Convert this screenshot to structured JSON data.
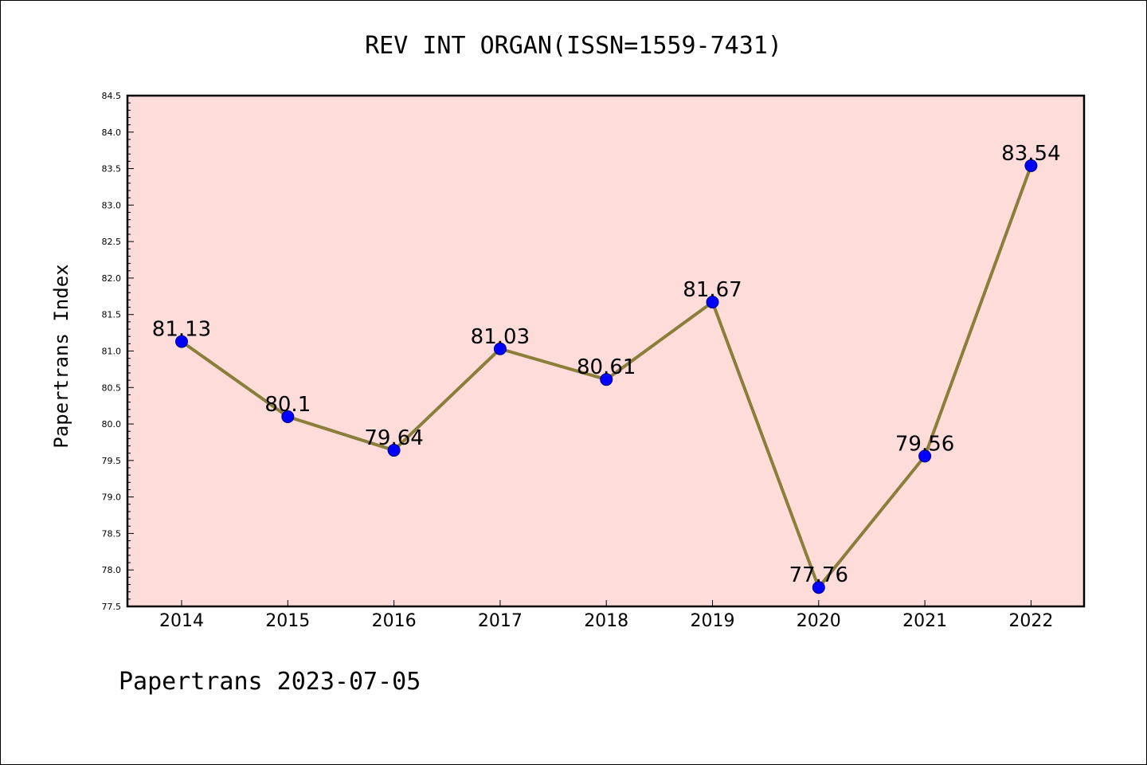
{
  "chart_data": {
    "type": "line",
    "title": "REV INT ORGAN(ISSN=1559-7431)",
    "ylabel": "Papertrans Index",
    "xlabel": "",
    "footer": "Papertrans 2023-07-05",
    "x": [
      "2014",
      "2015",
      "2016",
      "2017",
      "2018",
      "2019",
      "2020",
      "2021",
      "2022"
    ],
    "series": [
      {
        "values": [
          81.13,
          80.1,
          79.64,
          81.03,
          80.61,
          81.67,
          77.76,
          79.56,
          83.54
        ],
        "labels": [
          "81.13",
          "80.1",
          "79.64",
          "81.03",
          "80.61",
          "81.67",
          "77.76",
          "79.56",
          "83.54"
        ]
      }
    ],
    "ylim": [
      77.5,
      84.5
    ],
    "yticks": [
      "77.5",
      "78.0",
      "78.5",
      "79.0",
      "79.5",
      "80.0",
      "80.5",
      "81.0",
      "81.5",
      "82.0",
      "82.5",
      "83.0",
      "83.5",
      "84.0",
      "84.5"
    ],
    "grid": false,
    "colors": {
      "plot_background": "#fddcda",
      "line": "#8b7d3a",
      "marker_fill": "#0000ff",
      "marker_edge": "#00008b"
    }
  }
}
